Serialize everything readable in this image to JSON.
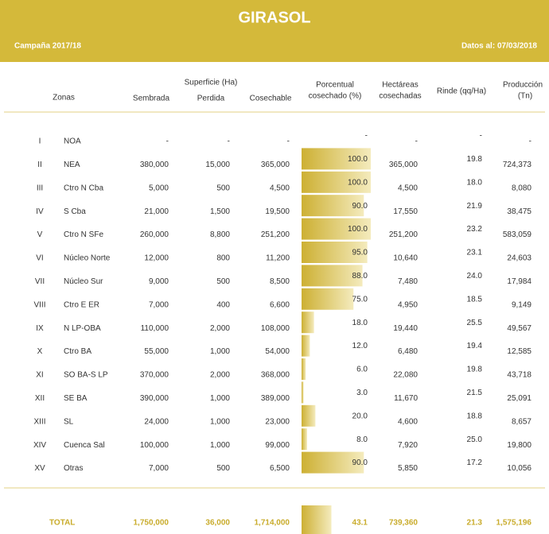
{
  "header": {
    "title": "GIRASOL",
    "campaign": "Campaña 2017/18",
    "date": "Datos al: 07/03/2018"
  },
  "columns": {
    "zonas": "Zonas",
    "superficie": "Superficie (Ha)",
    "sembrada": "Sembrada",
    "perdida": "Perdida",
    "cosechable": "Cosechable",
    "porcentual": [
      "Porcentual",
      "cosechado (%)"
    ],
    "hectareas": [
      "Hectáreas",
      "cosechadas"
    ],
    "rinde": "Rinde (qq/Ha)",
    "produccion": [
      "Producción",
      "(Tn)"
    ]
  },
  "rows": [
    [
      "I",
      "NOA",
      "-",
      "-",
      "-",
      "-",
      "-",
      "-",
      "-"
    ],
    [
      "II",
      "NEA",
      "380,000",
      "15,000",
      "365,000",
      "100.0",
      "365,000",
      "19.8",
      "724,373"
    ],
    [
      "III",
      "Ctro N Cba",
      "5,000",
      "500",
      "4,500",
      "100.0",
      "4,500",
      "18.0",
      "8,080"
    ],
    [
      "IV",
      "S Cba",
      "21,000",
      "1,500",
      "19,500",
      "90.0",
      "17,550",
      "21.9",
      "38,475"
    ],
    [
      "V",
      "Ctro N SFe",
      "260,000",
      "8,800",
      "251,200",
      "100.0",
      "251,200",
      "23.2",
      "583,059"
    ],
    [
      "VI",
      "Núcleo Norte",
      "12,000",
      "800",
      "11,200",
      "95.0",
      "10,640",
      "23.1",
      "24,603"
    ],
    [
      "VII",
      "Núcleo Sur",
      "9,000",
      "500",
      "8,500",
      "88.0",
      "7,480",
      "24.0",
      "17,984"
    ],
    [
      "VIII",
      "Ctro E ER",
      "7,000",
      "400",
      "6,600",
      "75.0",
      "4,950",
      "18.5",
      "9,149"
    ],
    [
      "IX",
      "N LP-OBA",
      "110,000",
      "2,000",
      "108,000",
      "18.0",
      "19,440",
      "25.5",
      "49,567"
    ],
    [
      "X",
      "Ctro BA",
      "55,000",
      "1,000",
      "54,000",
      "12.0",
      "6,480",
      "19.4",
      "12,585"
    ],
    [
      "XI",
      "SO BA-S LP",
      "370,000",
      "2,000",
      "368,000",
      "6.0",
      "22,080",
      "19.8",
      "43,718"
    ],
    [
      "XII",
      "SE BA",
      "390,000",
      "1,000",
      "389,000",
      "3.0",
      "11,670",
      "21.5",
      "25,091"
    ],
    [
      "XIII",
      "SL",
      "24,000",
      "1,000",
      "23,000",
      "20.0",
      "4,600",
      "18.8",
      "8,657"
    ],
    [
      "XIV",
      "Cuenca Sal",
      "100,000",
      "1,000",
      "99,000",
      "8.0",
      "7,920",
      "25.0",
      "19,800"
    ],
    [
      "XV",
      "Otras",
      "7,000",
      "500",
      "6,500",
      "90.0",
      "5,850",
      "17.2",
      "10,056"
    ]
  ],
  "total": {
    "label": "TOTAL",
    "values": [
      "1,750,000",
      "36,000",
      "1,714,000",
      "43.1",
      "739,360",
      "21.3",
      "1,575,196"
    ]
  }
}
